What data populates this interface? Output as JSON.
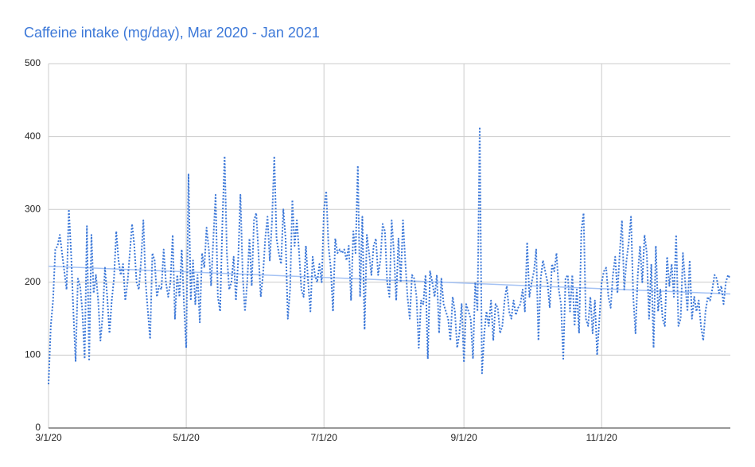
{
  "chart_data": {
    "type": "line",
    "title": "Caffeine intake (mg/day), Mar 2020 - Jan 2021",
    "x": [
      "2020-03-01",
      "2020-03-02",
      "2020-03-03",
      "2020-03-04",
      "2020-03-05",
      "2020-03-06",
      "2020-03-07",
      "2020-03-08",
      "2020-03-09",
      "2020-03-10",
      "2020-03-11",
      "2020-03-12",
      "2020-03-13",
      "2020-03-14",
      "2020-03-15",
      "2020-03-16",
      "2020-03-17",
      "2020-03-18",
      "2020-03-19",
      "2020-03-20",
      "2020-03-21",
      "2020-03-22",
      "2020-03-23",
      "2020-03-24",
      "2020-03-25",
      "2020-03-26",
      "2020-03-27",
      "2020-03-28",
      "2020-03-29",
      "2020-03-30",
      "2020-03-31",
      "2020-04-01",
      "2020-04-02",
      "2020-04-03",
      "2020-04-04",
      "2020-04-05",
      "2020-04-06",
      "2020-04-07",
      "2020-04-08",
      "2020-04-09",
      "2020-04-10",
      "2020-04-11",
      "2020-04-12",
      "2020-04-13",
      "2020-04-14",
      "2020-04-15",
      "2020-04-16",
      "2020-04-17",
      "2020-04-18",
      "2020-04-19",
      "2020-04-20",
      "2020-04-21",
      "2020-04-22",
      "2020-04-23",
      "2020-04-24",
      "2020-04-25",
      "2020-04-26",
      "2020-04-27",
      "2020-04-28",
      "2020-04-29",
      "2020-04-30",
      "2020-05-01",
      "2020-05-02",
      "2020-05-03",
      "2020-05-04",
      "2020-05-05",
      "2020-05-06",
      "2020-05-07",
      "2020-05-08",
      "2020-05-09",
      "2020-05-10",
      "2020-05-11",
      "2020-05-12",
      "2020-05-13",
      "2020-05-14",
      "2020-05-15",
      "2020-05-16",
      "2020-05-17",
      "2020-05-18",
      "2020-05-19",
      "2020-05-20",
      "2020-05-21",
      "2020-05-22",
      "2020-05-23",
      "2020-05-24",
      "2020-05-25",
      "2020-05-26",
      "2020-05-27",
      "2020-05-28",
      "2020-05-29",
      "2020-05-30",
      "2020-05-31",
      "2020-06-01",
      "2020-06-02",
      "2020-06-03",
      "2020-06-04",
      "2020-06-05",
      "2020-06-06",
      "2020-06-07",
      "2020-06-08",
      "2020-06-09",
      "2020-06-10",
      "2020-06-11",
      "2020-06-12",
      "2020-06-13",
      "2020-06-14",
      "2020-06-15",
      "2020-06-16",
      "2020-06-17",
      "2020-06-18",
      "2020-06-19",
      "2020-06-20",
      "2020-06-21",
      "2020-06-22",
      "2020-06-23",
      "2020-06-24",
      "2020-06-25",
      "2020-06-26",
      "2020-06-27",
      "2020-06-28",
      "2020-06-29",
      "2020-06-30",
      "2020-07-01",
      "2020-07-02",
      "2020-07-03",
      "2020-07-04",
      "2020-07-05",
      "2020-07-06",
      "2020-07-07",
      "2020-07-08",
      "2020-07-09",
      "2020-07-10",
      "2020-07-11",
      "2020-07-12",
      "2020-07-13",
      "2020-07-14",
      "2020-07-15",
      "2020-07-16",
      "2020-07-17",
      "2020-07-18",
      "2020-07-19",
      "2020-07-20",
      "2020-07-21",
      "2020-07-22",
      "2020-07-23",
      "2020-07-24",
      "2020-07-25",
      "2020-07-26",
      "2020-07-27",
      "2020-07-28",
      "2020-07-29",
      "2020-07-30",
      "2020-07-31",
      "2020-08-01",
      "2020-08-02",
      "2020-08-03",
      "2020-08-04",
      "2020-08-05",
      "2020-08-06",
      "2020-08-07",
      "2020-08-08",
      "2020-08-09",
      "2020-08-10",
      "2020-08-11",
      "2020-08-12",
      "2020-08-13",
      "2020-08-14",
      "2020-08-15",
      "2020-08-16",
      "2020-08-17",
      "2020-08-18",
      "2020-08-19",
      "2020-08-20",
      "2020-08-21",
      "2020-08-22",
      "2020-08-23",
      "2020-08-24",
      "2020-08-25",
      "2020-08-26",
      "2020-08-27",
      "2020-08-28",
      "2020-08-29",
      "2020-08-30",
      "2020-08-31",
      "2020-09-01",
      "2020-09-02",
      "2020-09-03",
      "2020-09-04",
      "2020-09-05",
      "2020-09-06",
      "2020-09-07",
      "2020-09-08",
      "2020-09-09",
      "2020-09-10",
      "2020-09-11",
      "2020-09-12",
      "2020-09-13",
      "2020-09-14",
      "2020-09-15",
      "2020-09-16",
      "2020-09-17",
      "2020-09-18",
      "2020-09-19",
      "2020-09-20",
      "2020-09-21",
      "2020-09-22",
      "2020-09-23",
      "2020-09-24",
      "2020-09-25",
      "2020-09-26",
      "2020-09-27",
      "2020-09-28",
      "2020-09-29",
      "2020-09-30",
      "2020-10-01",
      "2020-10-02",
      "2020-10-03",
      "2020-10-04",
      "2020-10-05",
      "2020-10-06",
      "2020-10-07",
      "2020-10-08",
      "2020-10-09",
      "2020-10-10",
      "2020-10-11",
      "2020-10-12",
      "2020-10-13",
      "2020-10-14",
      "2020-10-15",
      "2020-10-16",
      "2020-10-17",
      "2020-10-18",
      "2020-10-19",
      "2020-10-20",
      "2020-10-21",
      "2020-10-22",
      "2020-10-23",
      "2020-10-24",
      "2020-10-25",
      "2020-10-26",
      "2020-10-27",
      "2020-10-28",
      "2020-10-29",
      "2020-10-30",
      "2020-10-31",
      "2020-11-01",
      "2020-11-02",
      "2020-11-03",
      "2020-11-04",
      "2020-11-05",
      "2020-11-06",
      "2020-11-07",
      "2020-11-08",
      "2020-11-09",
      "2020-11-10",
      "2020-11-11",
      "2020-11-12",
      "2020-11-13",
      "2020-11-14",
      "2020-11-15",
      "2020-11-16",
      "2020-11-17",
      "2020-11-18",
      "2020-11-19",
      "2020-11-20",
      "2020-11-21",
      "2020-11-22",
      "2020-11-23",
      "2020-11-24",
      "2020-11-25",
      "2020-11-26",
      "2020-11-27",
      "2020-11-28",
      "2020-11-29",
      "2020-11-30",
      "2020-12-01",
      "2020-12-02",
      "2020-12-03",
      "2020-12-04",
      "2020-12-05",
      "2020-12-06",
      "2020-12-07",
      "2020-12-08",
      "2020-12-09",
      "2020-12-10",
      "2020-12-11",
      "2020-12-12",
      "2020-12-13",
      "2020-12-14",
      "2020-12-15",
      "2020-12-16",
      "2020-12-17",
      "2020-12-18",
      "2020-12-19",
      "2020-12-20",
      "2020-12-21",
      "2020-12-22",
      "2020-12-23",
      "2020-12-24",
      "2020-12-25",
      "2020-12-26",
      "2020-12-27",
      "2020-12-28"
    ],
    "values": [
      60,
      140,
      175,
      245,
      250,
      265,
      240,
      215,
      190,
      300,
      240,
      160,
      92,
      205,
      195,
      160,
      95,
      277,
      92,
      265,
      185,
      210,
      175,
      120,
      155,
      220,
      180,
      130,
      175,
      205,
      270,
      230,
      210,
      225,
      175,
      200,
      240,
      280,
      250,
      200,
      190,
      230,
      285,
      200,
      160,
      122,
      240,
      230,
      180,
      195,
      190,
      245,
      200,
      180,
      200,
      265,
      150,
      210,
      180,
      245,
      170,
      110,
      348,
      175,
      230,
      170,
      210,
      145,
      240,
      220,
      275,
      245,
      195,
      260,
      320,
      180,
      160,
      280,
      373,
      240,
      190,
      200,
      235,
      175,
      230,
      320,
      210,
      160,
      200,
      260,
      195,
      285,
      295,
      240,
      180,
      210,
      260,
      290,
      230,
      285,
      373,
      260,
      240,
      225,
      300,
      260,
      150,
      190,
      313,
      250,
      285,
      240,
      190,
      180,
      250,
      200,
      160,
      235,
      210,
      200,
      225,
      200,
      300,
      325,
      250,
      220,
      160,
      260,
      240,
      245,
      240,
      245,
      230,
      250,
      175,
      270,
      240,
      360,
      180,
      290,
      135,
      265,
      240,
      210,
      250,
      260,
      210,
      230,
      280,
      270,
      200,
      180,
      285,
      240,
      175,
      260,
      200,
      285,
      230,
      180,
      150,
      210,
      205,
      180,
      110,
      175,
      170,
      210,
      95,
      215,
      200,
      180,
      210,
      130,
      205,
      170,
      160,
      150,
      120,
      180,
      160,
      110,
      130,
      170,
      90,
      170,
      160,
      150,
      95,
      200,
      160,
      413,
      75,
      130,
      160,
      140,
      175,
      120,
      170,
      165,
      130,
      140,
      175,
      195,
      160,
      150,
      175,
      155,
      165,
      170,
      190,
      160,
      255,
      180,
      200,
      215,
      245,
      120,
      205,
      230,
      215,
      200,
      165,
      225,
      215,
      240,
      190,
      170,
      95,
      205,
      210,
      160,
      210,
      140,
      190,
      130,
      270,
      295,
      150,
      140,
      180,
      130,
      175,
      100,
      150,
      200,
      215,
      220,
      180,
      165,
      210,
      235,
      185,
      240,
      285,
      190,
      230,
      255,
      290,
      180,
      130,
      210,
      250,
      200,
      265,
      240,
      150,
      225,
      110,
      250,
      160,
      190,
      150,
      140,
      235,
      195,
      225,
      180,
      265,
      140,
      150,
      240,
      200,
      160,
      230,
      150,
      180,
      160,
      175,
      140,
      120,
      160,
      180,
      175,
      190,
      210,
      205,
      185,
      195,
      170,
      200,
      210,
      205
    ],
    "color": "#3c78d8",
    "trendline": {
      "x": [
        "2020-03-01",
        "2020-12-28"
      ],
      "values": [
        222,
        184
      ],
      "color": "#a4c2f4"
    },
    "xlim": [
      "2020-03-01",
      "2020-12-28"
    ],
    "xticks": [
      {
        "value": "2020-03-01",
        "label": "3/1/20"
      },
      {
        "value": "2020-05-01",
        "label": "5/1/20"
      },
      {
        "value": "2020-07-01",
        "label": "7/1/20"
      },
      {
        "value": "2020-09-01",
        "label": "9/1/20"
      },
      {
        "value": "2020-11-01",
        "label": "11/1/20"
      }
    ],
    "ylim": [
      0,
      500
    ],
    "yticks": [
      0,
      100,
      200,
      300,
      400,
      500
    ],
    "grid": true
  }
}
